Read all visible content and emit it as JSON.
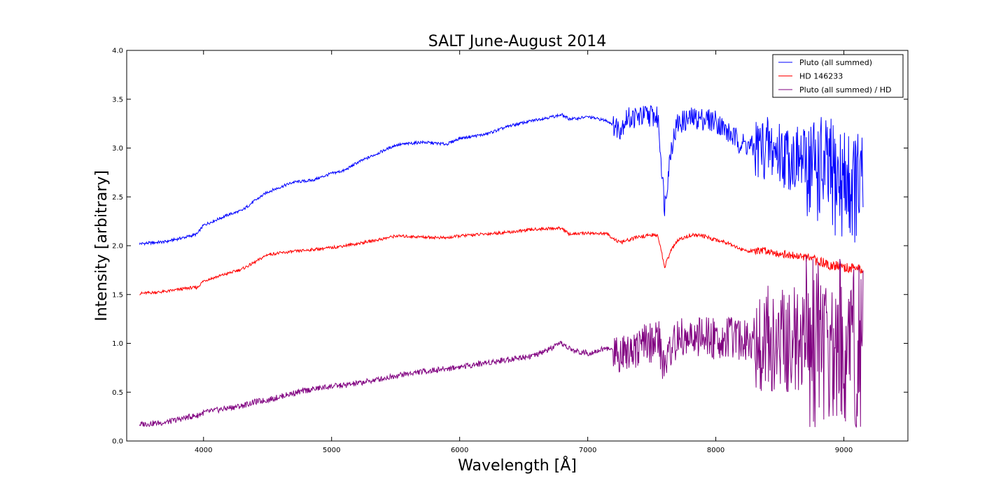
{
  "chart_data": {
    "type": "line",
    "title": "SALT June-August 2014",
    "xlabel": "Wavelength [Å]",
    "ylabel": "Intensity [arbitrary]",
    "xlim": [
      3400,
      9500
    ],
    "ylim": [
      0.0,
      4.0
    ],
    "xticks": [
      4000,
      5000,
      6000,
      7000,
      8000,
      9000
    ],
    "xtick_labels": [
      "4000",
      "5000",
      "6000",
      "7000",
      "8000",
      "9000"
    ],
    "yticks": [
      0.0,
      0.5,
      1.0,
      1.5,
      2.0,
      2.5,
      3.0,
      3.5,
      4.0
    ],
    "ytick_labels": [
      "0.0",
      "0.5",
      "1.0",
      "1.5",
      "2.0",
      "2.5",
      "3.0",
      "3.5",
      "4.0"
    ],
    "grid": false,
    "legend": "top-right",
    "series": [
      {
        "name": "Pluto (all summed)",
        "color": "#0000ff",
        "x": [
          3500,
          3700,
          3900,
          3950,
          4000,
          4200,
          4300,
          4400,
          4500,
          4700,
          4850,
          5000,
          5100,
          5200,
          5400,
          5500,
          5700,
          5900,
          6000,
          6200,
          6400,
          6600,
          6800,
          6850,
          6900,
          7000,
          7150,
          7250,
          7300,
          7400,
          7500,
          7550,
          7600,
          7650,
          7700,
          7800,
          7900,
          8000,
          8100,
          8200,
          8300,
          8400,
          8500,
          8600,
          8700,
          8800,
          8900,
          9000,
          9100,
          9150
        ],
        "y": [
          2.02,
          2.04,
          2.1,
          2.12,
          2.21,
          2.32,
          2.36,
          2.46,
          2.55,
          2.65,
          2.67,
          2.74,
          2.77,
          2.85,
          2.97,
          3.03,
          3.06,
          3.04,
          3.1,
          3.14,
          3.23,
          3.29,
          3.34,
          3.3,
          3.3,
          3.32,
          3.28,
          3.2,
          3.3,
          3.32,
          3.34,
          3.3,
          2.4,
          3.0,
          3.25,
          3.3,
          3.3,
          3.28,
          3.15,
          3.05,
          3.0,
          3.0,
          2.95,
          2.9,
          2.85,
          2.8,
          2.7,
          2.65,
          2.6,
          2.58
        ]
      },
      {
        "name": "HD 146233",
        "color": "#ff0000",
        "x": [
          3500,
          3700,
          3900,
          3950,
          4000,
          4200,
          4300,
          4400,
          4500,
          4700,
          4850,
          5000,
          5100,
          5200,
          5400,
          5500,
          5700,
          5900,
          6000,
          6200,
          6400,
          6600,
          6800,
          6850,
          6900,
          7000,
          7150,
          7250,
          7300,
          7400,
          7500,
          7550,
          7600,
          7650,
          7700,
          7800,
          7900,
          8000,
          8100,
          8200,
          8300,
          8400,
          8500,
          8600,
          8700,
          8800,
          8900,
          9000,
          9100,
          9150
        ],
        "y": [
          1.51,
          1.53,
          1.57,
          1.57,
          1.64,
          1.72,
          1.76,
          1.83,
          1.91,
          1.94,
          1.96,
          1.98,
          2.0,
          2.02,
          2.07,
          2.1,
          2.09,
          2.08,
          2.1,
          2.12,
          2.14,
          2.17,
          2.18,
          2.12,
          2.12,
          2.13,
          2.12,
          2.03,
          2.05,
          2.09,
          2.11,
          2.1,
          1.78,
          1.95,
          2.05,
          2.11,
          2.1,
          2.06,
          2.03,
          1.96,
          1.94,
          1.95,
          1.92,
          1.9,
          1.88,
          1.84,
          1.8,
          1.78,
          1.76,
          1.76
        ]
      },
      {
        "name": "Pluto (all summed) / HD",
        "color": "#800080",
        "x": [
          3500,
          3700,
          3900,
          3950,
          4000,
          4200,
          4300,
          4400,
          4500,
          4700,
          4850,
          5000,
          5100,
          5200,
          5400,
          5500,
          5700,
          5900,
          6000,
          6200,
          6400,
          6600,
          6800,
          6850,
          6900,
          7000,
          7150,
          7250,
          7300,
          7400,
          7500,
          7550,
          7600,
          7650,
          7700,
          7800,
          7900,
          8000,
          8100,
          8200,
          8300,
          8400,
          8500,
          8600,
          8700,
          8800,
          8900,
          9000,
          9100,
          9150
        ],
        "y": [
          0.17,
          0.19,
          0.25,
          0.26,
          0.29,
          0.34,
          0.36,
          0.4,
          0.42,
          0.49,
          0.53,
          0.56,
          0.57,
          0.59,
          0.64,
          0.67,
          0.71,
          0.74,
          0.76,
          0.8,
          0.84,
          0.88,
          1.0,
          0.95,
          0.92,
          0.9,
          0.95,
          0.9,
          0.95,
          0.97,
          1.0,
          1.05,
          0.75,
          0.95,
          1.05,
          1.05,
          1.05,
          1.05,
          1.05,
          1.05,
          1.05,
          1.05,
          1.03,
          1.03,
          1.03,
          1.02,
          1.0,
          1.0,
          0.98,
          0.98
        ]
      }
    ]
  }
}
